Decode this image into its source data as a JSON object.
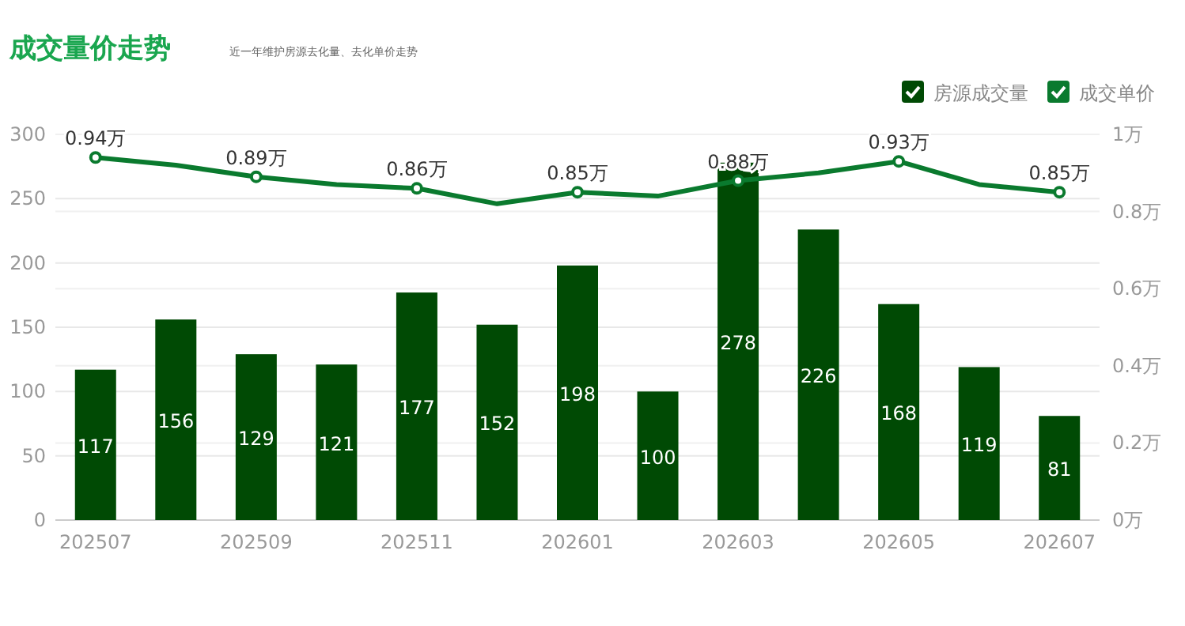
{
  "chart_data": {
    "type": "bar",
    "title": "成交量价走势",
    "subtitle": "近一年维护房源去化量、去化单价走势",
    "categories": [
      "202507",
      null,
      "202509",
      null,
      "202511",
      null,
      "202601",
      null,
      "202603",
      null,
      "202605",
      null,
      "202607"
    ],
    "series": [
      {
        "name": "房源成交量",
        "color": "#004a04",
        "values": [
          117,
          156,
          129,
          121,
          177,
          152,
          198,
          100,
          278,
          226,
          168,
          119,
          81
        ],
        "value_labels": [
          "117",
          "156",
          "129",
          "121",
          "177",
          "152",
          "198",
          "100",
          "278",
          "226",
          "168",
          "119",
          "81"
        ]
      },
      {
        "name": "成交单价",
        "type": "line",
        "axis": "y2",
        "color": "#0a7a2e",
        "marker": "circle",
        "values": [
          0.94,
          0.92,
          0.89,
          0.87,
          0.86,
          0.82,
          0.85,
          0.84,
          0.88,
          0.9,
          0.93,
          0.87,
          0.85
        ],
        "value_labels": [
          "0.94万",
          null,
          "0.89万",
          null,
          "0.86万",
          null,
          "0.85万",
          null,
          "0.88万",
          null,
          "0.93万",
          null,
          "0.85万"
        ]
      }
    ],
    "ylim": [
      0,
      300
    ],
    "yticks": [
      0,
      50,
      100,
      150,
      200,
      250,
      300
    ],
    "y2lim": [
      0,
      1
    ],
    "y2ticks": [
      {
        "value": 0,
        "label": "0万"
      },
      {
        "value": 0.2,
        "label": "0.2万"
      },
      {
        "value": 0.4,
        "label": "0.4万"
      },
      {
        "value": 0.6,
        "label": "0.6万"
      },
      {
        "value": 0.8,
        "label": "0.8万"
      },
      {
        "value": 1,
        "label": "1万"
      }
    ],
    "grid": "y",
    "legend": "top right"
  }
}
